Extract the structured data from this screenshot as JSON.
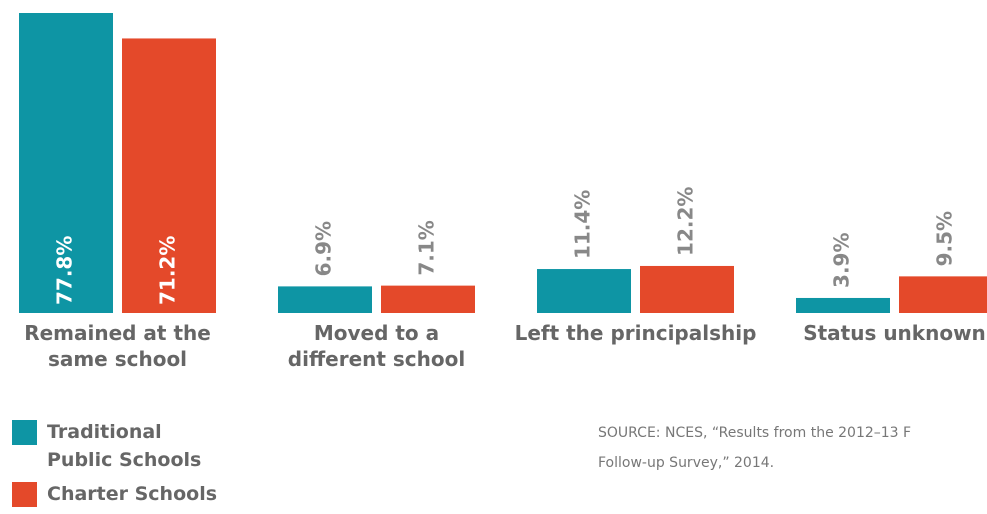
{
  "chart_data": {
    "type": "bar",
    "categories": [
      [
        "Remained at the",
        "same school"
      ],
      [
        "Moved to a",
        "different school"
      ],
      [
        "Left the principalship"
      ],
      [
        "Status unknown"
      ]
    ],
    "series": [
      {
        "name": "Traditional Public Schools",
        "values": [
          77.8,
          6.9,
          11.4,
          3.9
        ],
        "labels": [
          "77.8%",
          "6.9%",
          "11.4%",
          "3.9%"
        ],
        "color": "#0E95A4"
      },
      {
        "name": "Charter Schools",
        "values": [
          71.2,
          7.1,
          12.2,
          9.5
        ],
        "labels": [
          "71.2%",
          "7.1%",
          "12.2%",
          "9.5%"
        ],
        "color": "#E4492A"
      }
    ],
    "value_label_color_outside": "#888888",
    "value_label_color_inside": "#ffffff"
  },
  "legend": {
    "items": [
      {
        "label_line1": "Traditional",
        "label_line2": "Public Schools",
        "color": "#0E95A4"
      },
      {
        "label_line1": "Charter Schools",
        "label_line2": "",
        "color": "#E4492A"
      }
    ]
  },
  "source": {
    "line1": "SOURCE: NCES, “Results from the 2012–13 F",
    "line2": "Follow-up Survey,” 2014."
  }
}
